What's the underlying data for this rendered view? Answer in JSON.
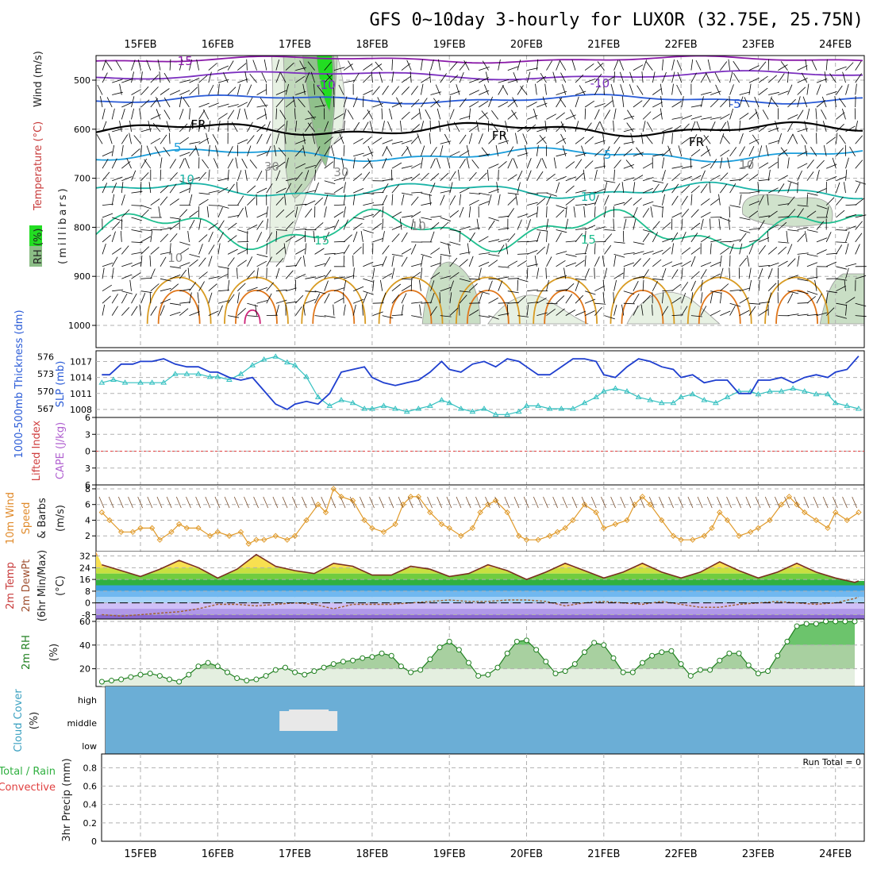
{
  "title": "GFS 0~10day 3-hourly for LUXOR (32.75E, 25.75N)",
  "dates": [
    "15FEB",
    "16FEB",
    "17FEB",
    "18FEB",
    "19FEB",
    "20FEB",
    "21FEB",
    "22FEB",
    "23FEB",
    "24FEB"
  ],
  "colors": {
    "wind_barb": "#000000",
    "rh_fill_light": "#e4efe0",
    "rh_fill_mid": "#bcd6b6",
    "rh_fill_dark": "#8bbd86",
    "rh_fill_bright": "#22dd22",
    "temp_minus15": "#8a1aa8",
    "temp_minus10": "#7b2fbf",
    "temp_minus5": "#2a5bd7",
    "temp_freeze": "#000000",
    "temp_5": "#1a9ddb",
    "temp_10": "#19b3a6",
    "temp_15": "#1fbf8f",
    "temp_20": "#d89b22",
    "temp_25": "#e0761a",
    "temp_30": "#cc2277",
    "slp_line": "#1f3fcf",
    "thickness_line": "#33c0c0",
    "lifted_index_zero": "#e04040",
    "wind_speed_line": "#e09a2a",
    "temp_line": "#7a3020",
    "dewpt_line": "#a06030",
    "rh_line": "#208020",
    "cloud_bg": "#6baed6",
    "cloud_mid": "#e8e8e8"
  },
  "panels": {
    "upper": {
      "ylabel_parts": [
        "RH (%)",
        "Temperature (°C)",
        "Wind (m/s)"
      ],
      "ylabel_units": "(millibars)",
      "y_ticks": [
        "500",
        "600",
        "700",
        "800",
        "900",
        "1000"
      ],
      "contour_labels": [
        "-15",
        "-10",
        "-10",
        "-5",
        "FR",
        "FR",
        "FR",
        "5",
        "5",
        "10",
        "10",
        "15",
        "15",
        "10",
        "10",
        "30",
        "30",
        "10"
      ]
    },
    "slp": {
      "left_label": "1000-500mb Thickness (dm)",
      "right_label": "SLP (mb)",
      "left_ticks": [
        "576",
        "573",
        "570",
        "567"
      ],
      "right_ticks": [
        "1017",
        "1014",
        "1011",
        "1008"
      ]
    },
    "cape": {
      "left_label": "Lifted Index",
      "right_label": "CAPE (J/kg)",
      "ticks": [
        "6",
        "3",
        "0",
        "3",
        "6"
      ]
    },
    "wind": {
      "label1": "10m Wind",
      "label2": "Speed",
      "label3": "& Barbs",
      "units": "(m/s)",
      "ticks": [
        "8",
        "6",
        "4",
        "2"
      ]
    },
    "temp": {
      "label1": "2m Temp",
      "label2": "2m DewPt",
      "label3": "(6hr Min/Max)",
      "units": "(°C)",
      "ticks": [
        "32",
        "24",
        "16",
        "8",
        "0",
        "-8"
      ]
    },
    "rh": {
      "label": "2m RH",
      "units": "(%)",
      "ticks": [
        "60",
        "40",
        "20"
      ]
    },
    "cloud": {
      "label": "Cloud Cover",
      "units": "(%)",
      "levels": [
        "high",
        "middle",
        "low"
      ]
    },
    "precip": {
      "label1": "Total / Rain",
      "label2": "Convective",
      "label3": "3hr Precip (mm)",
      "ticks": [
        "0.8",
        "0.6",
        "0.4",
        "0.2",
        "0"
      ],
      "run_total": "Run Total = 0"
    }
  },
  "chart_data": [
    {
      "type": "line",
      "title": "SLP (mb)",
      "x_unit": "days from 15FEB 00Z",
      "x": [
        -0.5,
        -0.4,
        -0.25,
        -0.1,
        0,
        0.15,
        0.3,
        0.45,
        0.6,
        0.75,
        0.9,
        1.0,
        1.15,
        1.3,
        1.45,
        1.6,
        1.75,
        1.9,
        2.0,
        2.15,
        2.3,
        2.45,
        2.6,
        2.75,
        2.9,
        3.0,
        3.15,
        3.3,
        3.45,
        3.6,
        3.75,
        3.9,
        4.0,
        4.15,
        4.3,
        4.45,
        4.6,
        4.75,
        4.9,
        5.0,
        5.15,
        5.3,
        5.45,
        5.6,
        5.75,
        5.9,
        6.0,
        6.15,
        6.3,
        6.45,
        6.6,
        6.75,
        6.9,
        7.0,
        7.15,
        7.3,
        7.45,
        7.6,
        7.75,
        7.9,
        8.0,
        8.15,
        8.3,
        8.45,
        8.6,
        8.75,
        8.9,
        9.0,
        9.15,
        9.3
      ],
      "values": [
        1014.5,
        1014.5,
        1016.5,
        1016.5,
        1017,
        1017,
        1017.5,
        1016.5,
        1016,
        1016,
        1015,
        1015,
        1014,
        1013.5,
        1014,
        1011.5,
        1009,
        1008,
        1009,
        1009.5,
        1009,
        1011,
        1015,
        1015.5,
        1016,
        1014,
        1013,
        1012.5,
        1013,
        1013.5,
        1015,
        1017,
        1015.5,
        1015,
        1016.5,
        1017,
        1016,
        1017.5,
        1017,
        1016,
        1014.5,
        1014.5,
        1016,
        1017.5,
        1017.5,
        1017,
        1014.5,
        1014,
        1016,
        1017.5,
        1017,
        1016,
        1015.5,
        1014,
        1014.5,
        1013,
        1013.5,
        1013.5,
        1011,
        1011,
        1013.5,
        1013.5,
        1014,
        1013,
        1014,
        1014.5,
        1014,
        1015,
        1015.5,
        1018
      ],
      "ylim": [
        1006.5,
        1019
      ]
    },
    {
      "type": "line",
      "title": "1000-500mb Thickness (dm)",
      "x_unit": "days from 15FEB 00Z",
      "x": [
        -0.5,
        -0.35,
        -0.2,
        0,
        0.15,
        0.3,
        0.45,
        0.6,
        0.75,
        0.9,
        1.0,
        1.15,
        1.3,
        1.45,
        1.6,
        1.75,
        1.9,
        2.0,
        2.15,
        2.3,
        2.45,
        2.6,
        2.75,
        2.9,
        3.0,
        3.15,
        3.3,
        3.45,
        3.6,
        3.75,
        3.9,
        4.0,
        4.15,
        4.3,
        4.45,
        4.6,
        4.75,
        4.9,
        5.0,
        5.15,
        5.3,
        5.45,
        5.6,
        5.75,
        5.9,
        6.0,
        6.15,
        6.3,
        6.45,
        6.6,
        6.75,
        6.9,
        7.0,
        7.15,
        7.3,
        7.45,
        7.6,
        7.75,
        7.9,
        8.0,
        8.15,
        8.3,
        8.45,
        8.6,
        8.75,
        8.9,
        9.0,
        9.15,
        9.3
      ],
      "values": [
        571.5,
        572,
        571.5,
        571.5,
        571.5,
        571.5,
        573,
        573,
        573,
        572.5,
        572.5,
        572,
        573,
        574.5,
        575.5,
        576,
        575,
        574.5,
        572.5,
        569,
        567.5,
        568.5,
        568,
        567,
        567,
        567.5,
        567,
        566.5,
        567,
        567.5,
        568.5,
        568,
        567,
        566.5,
        567,
        566,
        566,
        566.5,
        567.5,
        567.5,
        567,
        567,
        567,
        568,
        569,
        570,
        570.5,
        570,
        569,
        568.5,
        568,
        568,
        569,
        569.5,
        568.5,
        568,
        569,
        570,
        570,
        569.5,
        570,
        570,
        570.5,
        570,
        569.5,
        569.5,
        568,
        567.5,
        567
      ],
      "ylim": [
        565.5,
        577
      ]
    },
    {
      "type": "line",
      "title": "10m Wind Speed (m/s)",
      "x_unit": "days from 15FEB 00Z",
      "x": [
        -0.5,
        -0.4,
        -0.25,
        -0.1,
        0,
        0.15,
        0.25,
        0.4,
        0.5,
        0.6,
        0.75,
        0.9,
        1.0,
        1.15,
        1.3,
        1.4,
        1.5,
        1.6,
        1.75,
        1.9,
        2.0,
        2.15,
        2.3,
        2.4,
        2.5,
        2.6,
        2.75,
        2.9,
        3.0,
        3.15,
        3.3,
        3.4,
        3.5,
        3.6,
        3.75,
        3.9,
        4.0,
        4.15,
        4.3,
        4.4,
        4.5,
        4.6,
        4.75,
        4.9,
        5.0,
        5.15,
        5.3,
        5.4,
        5.5,
        5.6,
        5.75,
        5.9,
        6.0,
        6.15,
        6.3,
        6.4,
        6.5,
        6.6,
        6.75,
        6.9,
        7.0,
        7.15,
        7.3,
        7.4,
        7.5,
        7.6,
        7.75,
        7.9,
        8.0,
        8.15,
        8.3,
        8.4,
        8.5,
        8.6,
        8.75,
        8.9,
        9.0,
        9.15,
        9.3
      ],
      "values": [
        5,
        4,
        2.5,
        2.5,
        3,
        3,
        1.5,
        2.5,
        3.5,
        3,
        3,
        2,
        2.5,
        2,
        2.5,
        1,
        1.5,
        1.5,
        2,
        1.5,
        2,
        4,
        6,
        5,
        8,
        7,
        6.5,
        4,
        3,
        2.5,
        3.5,
        6,
        7,
        7,
        5,
        3.5,
        3,
        2,
        3,
        5,
        6,
        6.5,
        5,
        2,
        1.5,
        1.5,
        2,
        2.5,
        3,
        4,
        6,
        5,
        3,
        3.5,
        4,
        6,
        7,
        6,
        4,
        2,
        1.5,
        1.5,
        2,
        3,
        5,
        4,
        2,
        2.5,
        3,
        4,
        6,
        7,
        6,
        5,
        4,
        3,
        5,
        4,
        5
      ],
      "ylim": [
        0,
        8.5
      ]
    },
    {
      "type": "line",
      "title": "2m Temp (°C)",
      "x_unit": "days from 15FEB 00Z",
      "x": [
        -0.5,
        -0.25,
        0,
        0.25,
        0.5,
        0.75,
        1.0,
        1.25,
        1.5,
        1.75,
        2.0,
        2.25,
        2.5,
        2.75,
        3.0,
        3.25,
        3.5,
        3.75,
        4.0,
        4.25,
        4.5,
        4.75,
        5.0,
        5.25,
        5.5,
        5.75,
        6.0,
        6.25,
        6.5,
        6.75,
        7.0,
        7.25,
        7.5,
        7.75,
        8.0,
        8.25,
        8.5,
        8.75,
        9.0,
        9.25,
        9.3
      ],
      "values": [
        26,
        22,
        18,
        23,
        29,
        24,
        17,
        23,
        33,
        25,
        22,
        20,
        27,
        25,
        19,
        19,
        25,
        23,
        18,
        20,
        26,
        22,
        16,
        21,
        27,
        22,
        17,
        21,
        27,
        21,
        17,
        21,
        28,
        22,
        17,
        21,
        27,
        21,
        17,
        14,
        15
      ],
      "ylim": [
        -11,
        35
      ]
    },
    {
      "type": "line",
      "title": "2m DewPt (°C)",
      "x_unit": "days from 15FEB 00Z",
      "x": [
        -0.5,
        -0.25,
        0,
        0.25,
        0.5,
        0.75,
        1.0,
        1.25,
        1.5,
        1.75,
        2.0,
        2.25,
        2.5,
        2.75,
        3.0,
        3.25,
        3.5,
        3.75,
        4.0,
        4.25,
        4.5,
        4.75,
        5.0,
        5.25,
        5.5,
        5.75,
        6.0,
        6.25,
        6.5,
        6.75,
        7.0,
        7.25,
        7.5,
        7.75,
        8.0,
        8.25,
        8.5,
        8.75,
        9.0,
        9.25,
        9.3
      ],
      "values": [
        -8,
        -9,
        -8,
        -7,
        -6,
        -4,
        -1,
        -1,
        -2,
        -1,
        0,
        -1,
        -4,
        -1,
        -1,
        -1,
        0,
        1,
        2,
        1,
        1,
        2,
        2,
        1,
        -2,
        0,
        1,
        0,
        -1,
        1,
        -1,
        -3,
        -3,
        -1,
        0,
        1,
        0,
        -1,
        0,
        3,
        4
      ],
      "ylim": [
        -11,
        35
      ]
    },
    {
      "type": "area",
      "title": "2m RH (%)",
      "x_unit": "days from 15FEB 00Z",
      "x": [
        -0.5,
        -0.375,
        -0.25,
        -0.125,
        0,
        0.125,
        0.25,
        0.375,
        0.5,
        0.625,
        0.75,
        0.875,
        1.0,
        1.125,
        1.25,
        1.375,
        1.5,
        1.625,
        1.75,
        1.875,
        2.0,
        2.125,
        2.25,
        2.375,
        2.5,
        2.625,
        2.75,
        2.875,
        3.0,
        3.125,
        3.25,
        3.375,
        3.5,
        3.625,
        3.75,
        3.875,
        4.0,
        4.125,
        4.25,
        4.375,
        4.5,
        4.625,
        4.75,
        4.875,
        5.0,
        5.125,
        5.25,
        5.375,
        5.5,
        5.625,
        5.75,
        5.875,
        6.0,
        6.125,
        6.25,
        6.375,
        6.5,
        6.625,
        6.75,
        6.875,
        7.0,
        7.125,
        7.25,
        7.375,
        7.5,
        7.625,
        7.75,
        7.875,
        8.0,
        8.125,
        8.25,
        8.375,
        8.5,
        8.625,
        8.75,
        8.875,
        9.0,
        9.125,
        9.25
      ],
      "values": [
        9,
        10,
        11,
        13,
        15,
        16,
        14,
        11,
        9,
        15,
        22,
        25,
        22,
        17,
        12,
        10,
        11,
        14,
        19,
        21,
        17,
        15,
        18,
        21,
        24,
        26,
        27,
        29,
        30,
        33,
        31,
        22,
        17,
        19,
        28,
        38,
        43,
        36,
        25,
        14,
        15,
        21,
        33,
        43,
        44,
        36,
        26,
        16,
        18,
        24,
        34,
        42,
        40,
        29,
        17,
        17,
        25,
        31,
        34,
        35,
        24,
        14,
        19,
        19,
        27,
        33,
        33,
        23,
        16,
        18,
        31,
        43,
        56,
        58,
        58,
        60,
        60,
        60,
        60
      ],
      "ylim": [
        5,
        62
      ]
    },
    {
      "type": "bar",
      "title": "3hr Precip (mm)",
      "categories": [
        "15FEB",
        "16FEB",
        "17FEB",
        "18FEB",
        "19FEB",
        "20FEB",
        "21FEB",
        "22FEB",
        "23FEB",
        "24FEB"
      ],
      "values": [
        0,
        0,
        0,
        0,
        0,
        0,
        0,
        0,
        0,
        0
      ],
      "ylim": [
        0,
        0.95
      ]
    }
  ]
}
